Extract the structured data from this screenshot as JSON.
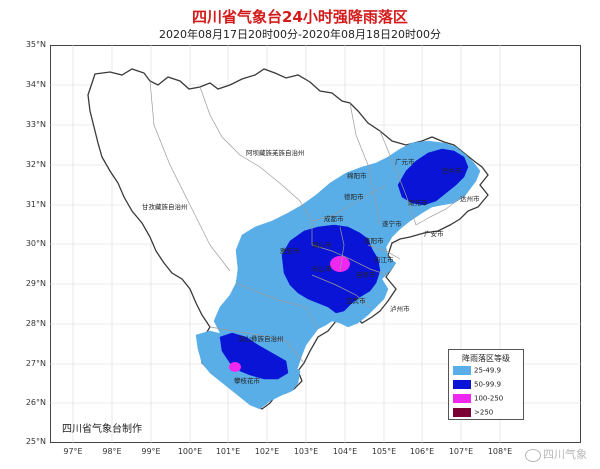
{
  "title": "四川省气象台24小时强降雨落区",
  "subtitle": "2020年08月17日20时00分-2020年08月18日20时00分",
  "lat_labels": [
    "35°N",
    "34°N",
    "33°N",
    "32°N",
    "31°N",
    "30°N",
    "29°N",
    "28°N",
    "27°N",
    "26°N",
    "25°N"
  ],
  "lon_labels": [
    "97°E",
    "98°E",
    "99°E",
    "100°E",
    "101°E",
    "102°E",
    "103°E",
    "104°E",
    "105°E",
    "106°E",
    "107°E",
    "108°E"
  ],
  "regions": {
    "aba": "阿坝藏族羌族自治州",
    "ganzi": "甘孜藏族自治州",
    "liangshan": "凉山彝族自治州",
    "guangyuan": "广元市",
    "mianyang": "绵阳市",
    "bazhong": "巴中市",
    "dazhou": "达州市",
    "nanchong": "南充市",
    "deyang": "德阳市",
    "suining": "遂宁市",
    "guangan": "广安市",
    "chengdu": "成都市",
    "ziyang": "资阳市",
    "yaan": "雅安市",
    "meishan": "眉山市",
    "neijiang": "内江市",
    "leshan": "乐山市",
    "zigong": "自贡市",
    "yibin": "宜宾市",
    "luzhou": "泸州市",
    "panzhihua": "攀枝花市"
  },
  "legend": {
    "title": "降雨落区等级",
    "items": [
      {
        "label": "25-49.9",
        "color": "#5aaee8"
      },
      {
        "label": "50-99.9",
        "color": "#0a14d6"
      },
      {
        "label": "100-250",
        "color": "#f028ef"
      },
      {
        "label": ">250",
        "color": "#7b0033"
      }
    ]
  },
  "colors": {
    "boundary": "#444444",
    "inner_boundary": "#9a9a9a",
    "title": "#d41b1b"
  },
  "credit": "四川省气象台制作",
  "watermark": "四川气象"
}
